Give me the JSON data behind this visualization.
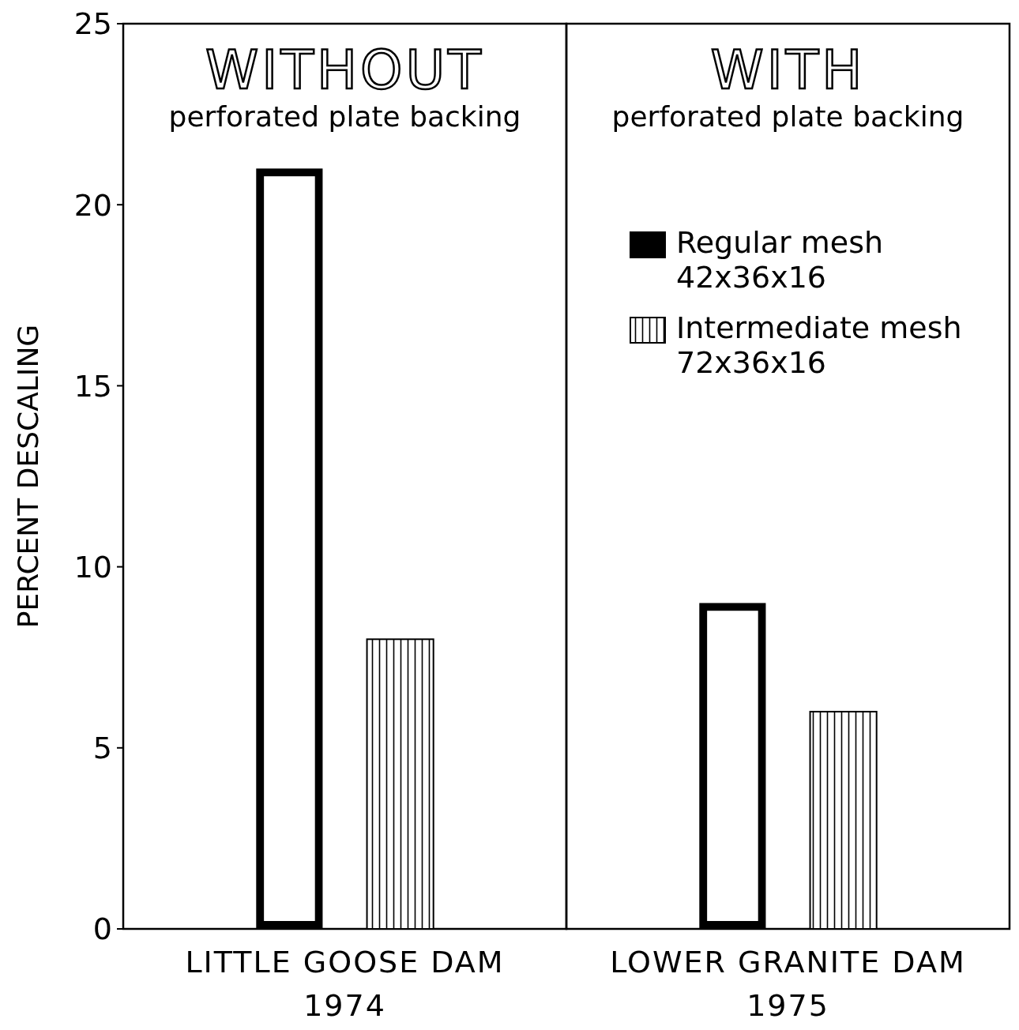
{
  "chart_data": [
    {
      "type": "bar",
      "title": "WITHOUT",
      "subtitle": "perforated plate backing",
      "categories": [
        "LITTLE GOOSE DAM"
      ],
      "xlabel": "1974",
      "ylabel": "PERCENT DESCALING",
      "ylim": [
        0,
        25
      ],
      "yticks": [
        0,
        5,
        10,
        15,
        20,
        25
      ],
      "series": [
        {
          "color": "#000000",
          "values": [
            21
          ]
        },
        {
          "color": "#000000",
          "values": [
            8
          ]
        }
      ]
    },
    {
      "type": "bar",
      "title": "WITH",
      "subtitle": "perforated plate backing",
      "categories": [
        "LOWER GRANITE DAM"
      ],
      "xlabel": "1975",
      "ylim": [
        0,
        25
      ],
      "tick_labels": "x",
      "legend": "top right",
      "series": [
        {
          "name": "Regular mesh\n42x36x16",
          "color": "#000000",
          "values": [
            9
          ]
        },
        {
          "name": "Intermediate mesh\n72x36x16",
          "color": "#000000",
          "values": [
            6
          ]
        }
      ]
    }
  ]
}
